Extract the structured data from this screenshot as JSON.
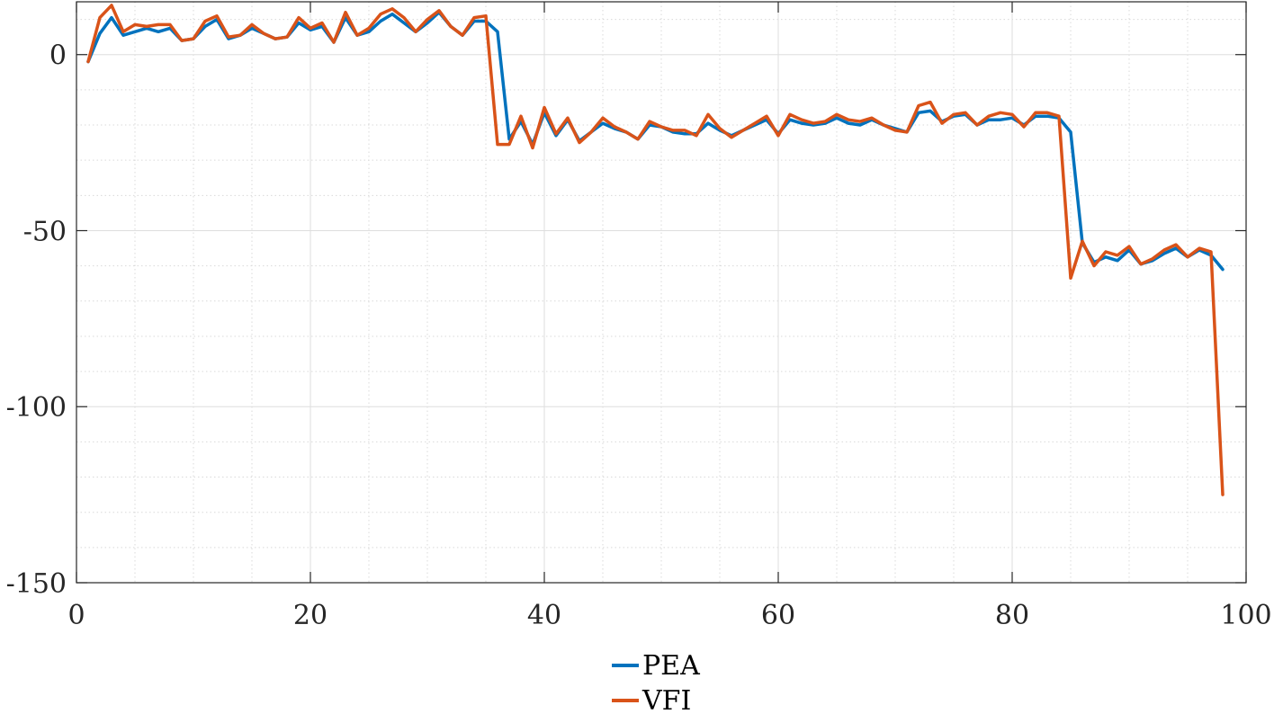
{
  "chart_data": {
    "type": "line",
    "title": "",
    "xlabel": "",
    "ylabel": "",
    "xlim": [
      0,
      100
    ],
    "ylim": [
      -150,
      15
    ],
    "xticks": [
      0,
      20,
      40,
      60,
      80,
      100
    ],
    "yticks": [
      -150,
      -100,
      -50,
      0
    ],
    "xtick_labels": [
      "0",
      "20",
      "40",
      "60",
      "80",
      "100"
    ],
    "ytick_labels": [
      "-150",
      "-100",
      "-50",
      "0"
    ],
    "grid": true,
    "minor_grid": true,
    "legend_position": "bottom-center",
    "x": [
      1,
      2,
      3,
      4,
      5,
      6,
      7,
      8,
      9,
      10,
      11,
      12,
      13,
      14,
      15,
      16,
      17,
      18,
      19,
      20,
      21,
      22,
      23,
      24,
      25,
      26,
      27,
      28,
      29,
      30,
      31,
      32,
      33,
      34,
      35,
      36,
      37,
      38,
      39,
      40,
      41,
      42,
      43,
      44,
      45,
      46,
      47,
      48,
      49,
      50,
      51,
      52,
      53,
      54,
      55,
      56,
      57,
      58,
      59,
      60,
      61,
      62,
      63,
      64,
      65,
      66,
      67,
      68,
      69,
      70,
      71,
      72,
      73,
      74,
      75,
      76,
      77,
      78,
      79,
      80,
      81,
      82,
      83,
      84,
      85,
      86,
      87,
      88,
      89,
      90,
      91,
      92,
      93,
      94,
      95,
      96,
      97,
      98
    ],
    "series": [
      {
        "name": "PEA",
        "color": "#0072BD",
        "values": [
          -2,
          6,
          10.5,
          5.5,
          6.5,
          7.5,
          6.5,
          7.5,
          4,
          4.5,
          8,
          10,
          4.5,
          5.5,
          7.5,
          6,
          4.5,
          5,
          9,
          7,
          8,
          3.5,
          10.5,
          5.5,
          6.5,
          9.5,
          11.5,
          9,
          6.5,
          9,
          12,
          8,
          5.5,
          9.5,
          9.5,
          6.5,
          -24,
          -19,
          -25.5,
          -16.5,
          -23,
          -18.5,
          -24.5,
          -22,
          -19.5,
          -21,
          -22,
          -24,
          -20,
          -20.5,
          -22,
          -22.5,
          -22.5,
          -19.5,
          -21.5,
          -23,
          -21.5,
          -20,
          -18.5,
          -22.5,
          -18.5,
          -19.5,
          -20,
          -19.5,
          -18,
          -19.5,
          -20,
          -18.5,
          -20,
          -21,
          -22,
          -16.5,
          -16,
          -19,
          -17.5,
          -17,
          -20,
          -18.5,
          -18.5,
          -18,
          -20,
          -17.5,
          -17.5,
          -18,
          -22,
          -53.5,
          -59,
          -57.5,
          -58.5,
          -55.5,
          -59.5,
          -58.5,
          -56.5,
          -55,
          -57.5,
          -55.5,
          -57,
          -61
        ]
      },
      {
        "name": "VFI",
        "color": "#D95319",
        "values": [
          -2,
          10.5,
          14,
          6.5,
          8.5,
          8,
          8.5,
          8.5,
          4,
          4.5,
          9.5,
          11,
          5,
          5.5,
          8.5,
          6,
          4.5,
          5,
          10.5,
          7.5,
          9,
          3.5,
          12,
          5.5,
          7.5,
          11.5,
          13,
          10.5,
          6.5,
          10,
          12.5,
          8,
          5.5,
          10.5,
          11,
          -25.5,
          -25.5,
          -17.5,
          -26.5,
          -15,
          -22.5,
          -18,
          -25,
          -22,
          -18,
          -20.5,
          -22,
          -24,
          -19,
          -20.5,
          -21.5,
          -21.5,
          -23,
          -17,
          -21,
          -23.5,
          -21.5,
          -19.5,
          -17.5,
          -23,
          -17,
          -18.5,
          -19.5,
          -19,
          -17,
          -18.5,
          -19,
          -18,
          -20,
          -21.5,
          -22,
          -14.5,
          -13.5,
          -19.5,
          -17,
          -16.5,
          -20,
          -17.5,
          -16.5,
          -17,
          -20.5,
          -16.5,
          -16.5,
          -17.5,
          -63.5,
          -53,
          -60,
          -56,
          -57,
          -54.5,
          -59.5,
          -58,
          -55.5,
          -54,
          -57.5,
          -55,
          -56,
          -125
        ]
      }
    ]
  }
}
